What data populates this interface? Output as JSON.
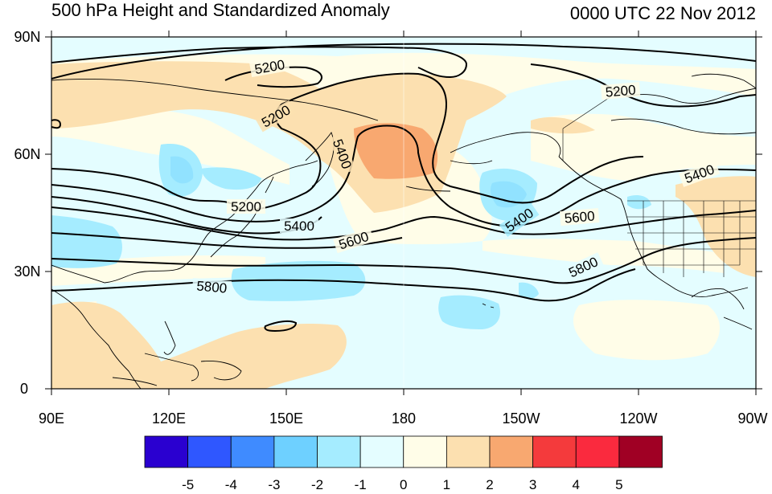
{
  "title": "500 hPa Height and Standardized Anomaly",
  "timestamp": "0000 UTC 22 Nov 2012",
  "lat_ticks": [
    "90N",
    "60N",
    "30N",
    "0"
  ],
  "lon_ticks": [
    "90E",
    "120E",
    "150E",
    "180",
    "150W",
    "120W",
    "90W"
  ],
  "contour_labels": [
    {
      "text": "5200",
      "rot": -10
    },
    {
      "text": "5200",
      "rot": -30
    },
    {
      "text": "5200",
      "rot": 0
    },
    {
      "text": "5200",
      "rot": -5
    },
    {
      "text": "5400",
      "rot": 70
    },
    {
      "text": "5400",
      "rot": 0
    },
    {
      "text": "5400",
      "rot": -20
    },
    {
      "text": "5400",
      "rot": -35
    },
    {
      "text": "5600",
      "rot": -18
    },
    {
      "text": "5600",
      "rot": -5
    },
    {
      "text": "5800",
      "rot": 5
    },
    {
      "text": "5800",
      "rot": -25
    }
  ],
  "colorbar": {
    "colors": [
      "#2a00d0",
      "#2f57ff",
      "#3f8bff",
      "#6ed0ff",
      "#a5ecff",
      "#e4fdff",
      "#fffde8",
      "#fce0b0",
      "#f8a870",
      "#f43a3c",
      "#fa2a3e",
      "#a00024"
    ],
    "labels": [
      "-5",
      "-4",
      "-3",
      "-2",
      "-1",
      "0",
      "1",
      "2",
      "3",
      "4",
      "5"
    ]
  }
}
